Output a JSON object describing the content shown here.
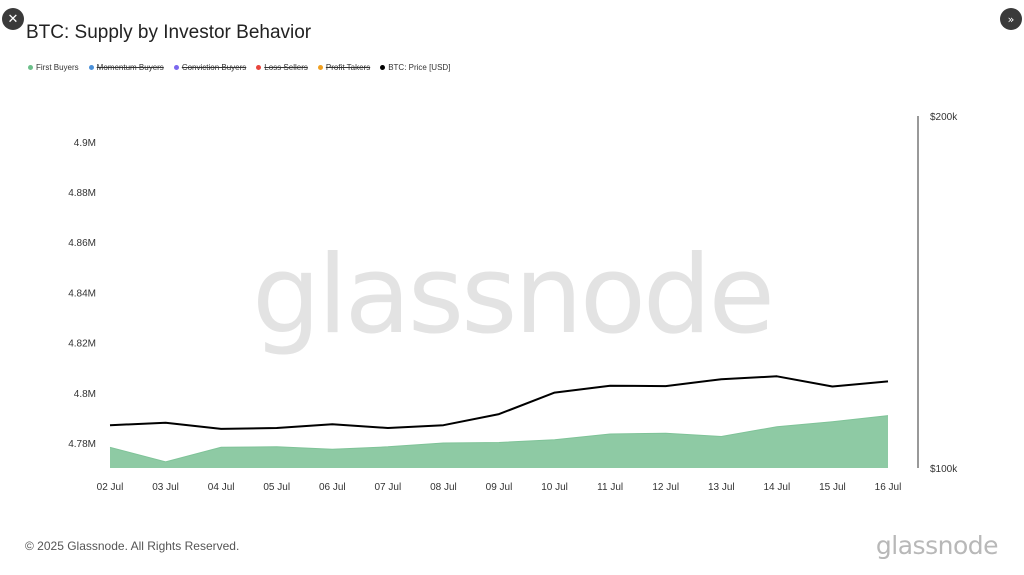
{
  "window": {
    "close_icon": "close-icon",
    "expand_icon": "chevrons-right-icon"
  },
  "title": "BTC: Supply by Investor Behavior",
  "legend": [
    {
      "label": "First Buyers",
      "color": "#6cbf8a",
      "active": true
    },
    {
      "label": "Momentum Buyers",
      "color": "#4a90d9",
      "active": false
    },
    {
      "label": "Conviction Buyers",
      "color": "#7b68ee",
      "active": false
    },
    {
      "label": "Loss Sellers",
      "color": "#e8453c",
      "active": false
    },
    {
      "label": "Profit Takers",
      "color": "#f0a020",
      "active": false
    },
    {
      "label": "BTC: Price [USD]",
      "color": "#000000",
      "active": true
    }
  ],
  "watermark": "glassnode",
  "footer": {
    "copyright": "© 2025 Glassnode. All Rights Reserved.",
    "logo": "glassnode"
  },
  "chart_data": {
    "type": "area",
    "categories": [
      "02 Jul",
      "03 Jul",
      "04 Jul",
      "05 Jul",
      "06 Jul",
      "07 Jul",
      "08 Jul",
      "09 Jul",
      "10 Jul",
      "11 Jul",
      "12 Jul",
      "13 Jul",
      "14 Jul",
      "15 Jul",
      "16 Jul"
    ],
    "series": [
      {
        "name": "First Buyers",
        "axis": "left",
        "color": "#8cc9a2",
        "values": [
          4.7783,
          4.7725,
          4.7783,
          4.7785,
          4.7775,
          4.7785,
          4.78,
          4.7802,
          4.7813,
          4.7836,
          4.7839,
          4.7826,
          4.7865,
          4.7885,
          4.7909
        ]
      },
      {
        "name": "BTC: Price [USD]",
        "axis": "right",
        "color": "#000000",
        "values": [
          108800,
          109300,
          108000,
          108200,
          109000,
          108200,
          108800,
          111200,
          116000,
          117600,
          117500,
          119100,
          119800,
          117400,
          118600
        ]
      }
    ],
    "left_axis": {
      "ticks": [
        4.78,
        4.8,
        4.82,
        4.84,
        4.86,
        4.88,
        4.9
      ],
      "tick_labels": [
        "4.78M",
        "4.8M",
        "4.82M",
        "4.84M",
        "4.86M",
        "4.88M",
        "4.9M"
      ]
    },
    "right_axis": {
      "ticks": [
        100000,
        200000
      ],
      "tick_labels": [
        "$100k",
        "$200k"
      ],
      "scale": "log"
    },
    "grid": false,
    "legend_position": "top-left"
  }
}
